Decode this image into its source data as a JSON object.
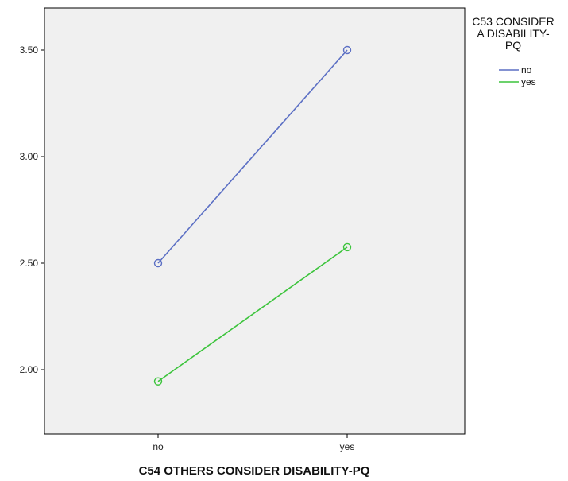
{
  "chart_data": {
    "type": "line",
    "title": "",
    "xlabel": "C54 OTHERS CONSIDER DISABILITY-PQ",
    "ylabel": "",
    "categories": [
      "no",
      "yes"
    ],
    "ylim": [
      1.7,
      3.7
    ],
    "yticks": [
      "2.00",
      "2.50",
      "3.00",
      "3.50"
    ],
    "grid": false,
    "plot_background": "#f0f0f0",
    "legend": {
      "title_lines": [
        "C53 CONSIDER",
        "A DISABILITY-",
        "PQ"
      ],
      "placement": "right"
    },
    "series": [
      {
        "name": "no",
        "values": [
          2.5,
          3.5
        ],
        "color": "#5b6fc4"
      },
      {
        "name": "yes",
        "values": [
          1.945,
          2.575
        ],
        "color": "#3cc43c"
      }
    ]
  }
}
